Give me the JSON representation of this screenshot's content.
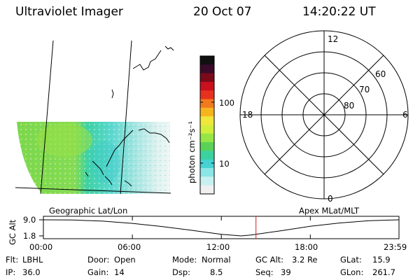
{
  "header": {
    "instrument": "Ultraviolet Imager",
    "date": "20 Oct 07",
    "time": "14:20:22 UT"
  },
  "map_panel": {
    "label": "Geographic Lat/Lon",
    "image": "uv-auroral-image-map"
  },
  "colorbar": {
    "unit_label": "photon cm⁻²s⁻¹",
    "scale": "log",
    "tick_labels": [
      "100",
      "10"
    ],
    "colors": [
      "#101010",
      "#3a0a2a",
      "#7a0a1a",
      "#c8101e",
      "#e8301e",
      "#f27a1e",
      "#f6b41e",
      "#f0e63c",
      "#d2ee3c",
      "#96e646",
      "#5ad25a",
      "#3cd2a0",
      "#46d2d2",
      "#8ce6e6",
      "#c8f0f0",
      "#f0f0f0"
    ]
  },
  "polar_panel": {
    "label": "Apex MLat/MLT",
    "mlt_labels": [
      "12",
      "18",
      "6",
      "0"
    ],
    "lat_labels": [
      "60",
      "70",
      "80"
    ]
  },
  "gc_alt": {
    "label": "GC Alt",
    "y_ticks": [
      "9.0",
      "1.8"
    ],
    "x_ticks": [
      "00:00",
      "06:00",
      "12:00",
      "18:00",
      "23:59"
    ],
    "marker_time": "14:20:22",
    "marker_color": "#d41c1c"
  },
  "info": [
    [
      {
        "k": "Flt:",
        "v": "LBHL"
      },
      {
        "k": "Door:",
        "v": "Open"
      },
      {
        "k": "Mode:",
        "v": "Normal"
      },
      {
        "k": "GC Alt:",
        "v": "3.2 Re"
      },
      {
        "k": "GLat:",
        "v": "15.9"
      }
    ],
    [
      {
        "k": "IP:",
        "v": "36.0"
      },
      {
        "k": "Gain:",
        "v": "14"
      },
      {
        "k": "Dsp:",
        "v": "8.5"
      },
      {
        "k": "Seq:",
        "v": "39"
      },
      {
        "k": "GLon:",
        "v": "261.7"
      }
    ]
  ],
  "chart_data": {
    "type": "line",
    "title": "",
    "xlabel": "",
    "ylabel": "GC Alt",
    "x": [
      "00:00",
      "02:00",
      "04:00",
      "06:00",
      "08:00",
      "10:00",
      "12:00",
      "13:20",
      "14:00",
      "16:00",
      "18:00",
      "20:00",
      "22:00",
      "23:59"
    ],
    "values": [
      9.0,
      8.9,
      8.4,
      7.4,
      6.0,
      4.3,
      2.5,
      1.8,
      2.2,
      4.1,
      6.1,
      7.6,
      8.6,
      9.0
    ],
    "ylim": [
      1.8,
      9.0
    ],
    "grid": false
  }
}
